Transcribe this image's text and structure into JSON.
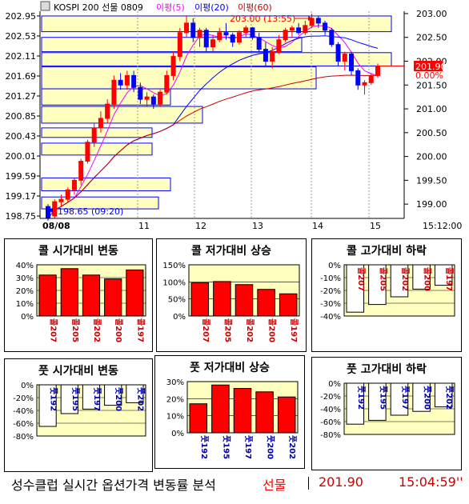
{
  "header": {
    "symbol": "KOSPI 200 선물 0809",
    "ma5": "이평(5)",
    "ma20": "이평(20)",
    "ma60": "이평(60)",
    "high_label": "203.00 (13:55)",
    "low_label": "198.65 (09:20)",
    "last_price": "201.90",
    "last_change": "0.00%",
    "date_label": "08/08",
    "time_label": "15:12:00"
  },
  "colors": {
    "up": "#ff0000",
    "down": "#0000ff",
    "ma5": "#ff00ff",
    "ma20": "#0000ff",
    "ma60": "#cc0000",
    "box": "#ffffc0",
    "box_border": "#0000ff"
  },
  "chart_data": [
    {
      "type": "candlestick",
      "title": "KOSPI 200 선물 0809",
      "left_axis_ticks": [
        "202.95",
        "202.53",
        "202.11",
        "201.69",
        "201.27",
        "200.85",
        "200.43",
        "200.01",
        "199.59",
        "199.17",
        "198.75"
      ],
      "right_axis_ticks": [
        "203.00",
        "202.50",
        "202.00",
        "201.50",
        "201.00",
        "200.50",
        "200.00",
        "199.50",
        "199.00"
      ],
      "x_ticks": [
        "08/08",
        "11",
        "12",
        "13",
        "14",
        "15",
        "15:12:00"
      ],
      "ylim": [
        198.7,
        203.05
      ],
      "ohlc": [
        [
          198.95,
          199.0,
          198.65,
          198.7
        ],
        [
          198.75,
          199.1,
          198.7,
          199.05
        ],
        [
          199.05,
          199.2,
          198.95,
          199.1
        ],
        [
          199.1,
          199.35,
          199.05,
          199.3
        ],
        [
          199.3,
          199.55,
          199.2,
          199.5
        ],
        [
          199.5,
          199.95,
          199.4,
          199.9
        ],
        [
          199.9,
          200.35,
          199.85,
          200.3
        ],
        [
          200.3,
          200.7,
          200.2,
          200.6
        ],
        [
          200.6,
          200.95,
          200.5,
          200.8
        ],
        [
          200.8,
          201.2,
          200.7,
          201.1
        ],
        [
          201.1,
          201.7,
          201.0,
          201.6
        ],
        [
          201.6,
          201.75,
          201.4,
          201.5
        ],
        [
          201.5,
          201.8,
          201.4,
          201.7
        ],
        [
          201.7,
          201.8,
          201.35,
          201.45
        ],
        [
          201.45,
          201.55,
          201.1,
          201.2
        ],
        [
          201.2,
          201.35,
          201.05,
          201.25
        ],
        [
          201.25,
          201.3,
          201.0,
          201.1
        ],
        [
          201.1,
          201.4,
          201.05,
          201.35
        ],
        [
          201.35,
          201.8,
          201.3,
          201.7
        ],
        [
          201.7,
          202.2,
          201.6,
          202.1
        ],
        [
          202.1,
          202.7,
          202.0,
          202.6
        ],
        [
          202.6,
          202.95,
          202.5,
          202.8
        ],
        [
          202.8,
          202.9,
          202.4,
          202.5
        ],
        [
          202.5,
          202.7,
          202.3,
          202.65
        ],
        [
          202.65,
          202.7,
          202.2,
          202.3
        ],
        [
          202.3,
          202.55,
          202.2,
          202.45
        ],
        [
          202.45,
          202.7,
          202.4,
          202.6
        ],
        [
          202.6,
          202.8,
          202.45,
          202.55
        ],
        [
          202.55,
          202.6,
          202.3,
          202.4
        ],
        [
          202.4,
          202.65,
          202.35,
          202.6
        ],
        [
          202.6,
          202.75,
          202.5,
          202.7
        ],
        [
          202.7,
          202.72,
          202.45,
          202.5
        ],
        [
          202.5,
          202.6,
          202.2,
          202.25
        ],
        [
          202.25,
          202.4,
          201.9,
          202.0
        ],
        [
          202.0,
          202.3,
          201.85,
          202.2
        ],
        [
          202.2,
          202.55,
          202.15,
          202.45
        ],
        [
          202.45,
          202.7,
          202.4,
          202.65
        ],
        [
          202.65,
          202.75,
          202.5,
          202.7
        ],
        [
          202.7,
          202.8,
          202.55,
          202.6
        ],
        [
          202.6,
          202.85,
          202.55,
          202.75
        ],
        [
          202.75,
          203.0,
          202.7,
          202.9
        ],
        [
          202.9,
          202.95,
          202.7,
          202.8
        ],
        [
          202.8,
          202.85,
          202.55,
          202.65
        ],
        [
          202.65,
          202.7,
          202.3,
          202.35
        ],
        [
          202.35,
          202.4,
          201.9,
          202.0
        ],
        [
          202.0,
          202.2,
          201.8,
          202.15
        ],
        [
          202.15,
          202.2,
          201.7,
          201.8
        ],
        [
          201.8,
          201.85,
          201.4,
          201.5
        ],
        [
          201.5,
          201.6,
          201.3,
          201.55
        ],
        [
          201.55,
          201.75,
          201.5,
          201.7
        ],
        [
          201.7,
          201.95,
          201.65,
          201.9
        ]
      ]
    },
    {
      "type": "bar",
      "title": "콜 시가대비 변동",
      "categories": [
        "콜207",
        "콜205",
        "콜202",
        "콜200",
        "콜197"
      ],
      "values": [
        32,
        37,
        32,
        29,
        36
      ],
      "ylim": [
        0,
        40
      ],
      "ticks": [
        "40%",
        "30%",
        "20%",
        "10%",
        "0%"
      ]
    },
    {
      "type": "bar",
      "title": "콜 저가대비 상승",
      "categories": [
        "콜207",
        "콜205",
        "콜202",
        "콜200",
        "콜197"
      ],
      "values": [
        97,
        101,
        92,
        78,
        65
      ],
      "ylim": [
        0,
        150
      ],
      "ticks": [
        "150%",
        "100%",
        "50%",
        "0%"
      ]
    },
    {
      "type": "bar",
      "title": "콜 고가대비 하락",
      "categories": [
        "콜207",
        "콜205",
        "콜202",
        "콜200",
        "콜197"
      ],
      "values": [
        -37,
        -31,
        -25,
        -19,
        -16
      ],
      "ylim": [
        -40,
        0
      ],
      "ticks": [
        "0%",
        "-10%",
        "-20%",
        "-30%",
        "-40%"
      ]
    },
    {
      "type": "bar",
      "title": "풋 시가대비 변동",
      "categories": [
        "풋192",
        "풋195",
        "풋197",
        "풋200",
        "풋202"
      ],
      "values": [
        -65,
        -45,
        -38,
        -32,
        -28
      ],
      "ylim": [
        -80,
        0
      ],
      "ticks": [
        "0%",
        "-20%",
        "-40%",
        "-60%",
        "-80%"
      ]
    },
    {
      "type": "bar",
      "title": "풋 저가대비 상승",
      "categories": [
        "풋192",
        "풋195",
        "풋197",
        "풋200",
        "풋202"
      ],
      "values": [
        17,
        28,
        26,
        24,
        21
      ],
      "ylim": [
        0,
        30
      ],
      "ticks": [
        "30%",
        "20%",
        "10%",
        "0%"
      ]
    },
    {
      "type": "bar",
      "title": "풋 고가대비 하락",
      "categories": [
        "풋192",
        "풋195",
        "풋197",
        "풋200",
        "풋202"
      ],
      "values": [
        -64,
        -58,
        -50,
        -44,
        -37
      ],
      "ylim": [
        -80,
        0
      ],
      "ticks": [
        "0%",
        "-20%",
        "-40%",
        "-60%",
        "-80%"
      ]
    }
  ],
  "footer": {
    "title": "성수클럽 실시간 옵션가격 변동률 분석",
    "product": "선물",
    "price": "201.90",
    "time": "15:04:59''"
  }
}
